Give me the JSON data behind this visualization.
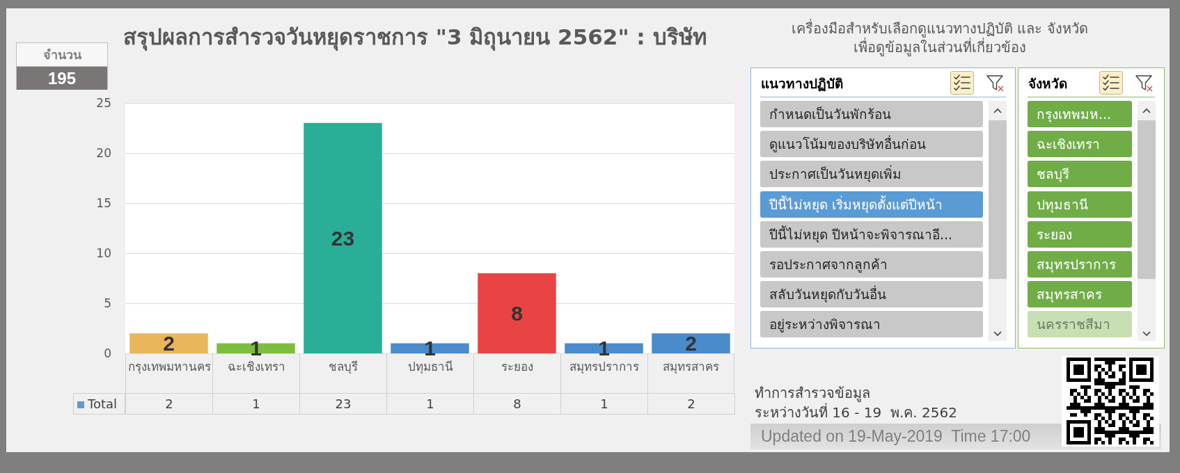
{
  "chart_data": [
    {
      "type": "other",
      "title": "จำนวน",
      "annotations": [
        "195"
      ]
    },
    {
      "type": "bar",
      "title": "สรุปผลการสำรวจวันหยุดราชการ \"3 มิถุนายน 2562\" : บริษัท",
      "categories": [
        "กรุงเทพมหานคร",
        "ฉะเชิงเทรา",
        "ชลบุรี",
        "ปทุมธานี",
        "ระยอง",
        "สมุทรปราการ",
        "สมุทรสาคร"
      ],
      "series": [
        {
          "name": "Total",
          "color": "#5b9bd5",
          "colors": [
            "#e9b65c",
            "#7dbd40",
            "#2aae97",
            "#4a8bcb",
            "#e84444",
            "#4a8bcb",
            "#4a8bcb"
          ],
          "values": [
            2,
            1,
            23,
            1,
            8,
            1,
            2
          ]
        }
      ],
      "ylim": [
        0,
        25
      ],
      "yticks": [
        0,
        5,
        10,
        15,
        20,
        25
      ],
      "grid": "y",
      "data_labels": true,
      "annotations": [
        "2",
        "1",
        "23",
        "1",
        "8",
        "1",
        "2"
      ]
    },
    {
      "type": "other",
      "annotations": [
        "เครื่องมือสำหรับเลือกดูแนวทางปฏิบัติ และ จังหวัด",
        "เพื่อดูข้อมูลในส่วนที่เกี่ยวข้อง"
      ]
    },
    {
      "type": "other",
      "title": "แนวทางปฏิบัติ",
      "annotations": [
        "กำหนดเป็นวันพักร้อน",
        "ดูแนวโน้มของบริษัทอื่นก่อน",
        "ประกาศเป็นวันหยุดเพิ่ม",
        "ปีนี้ไม่หยุด เริ่มหยุดตั้งแต่ปีหน้า",
        "ปีนี้ไม่หยุด ปีหน้าจะพิจารณาอี...",
        "รอประกาศจากลูกค้า",
        "สลับวันหยุดกับวันอื่น",
        "อยู่ระหว่างพิจารณา"
      ],
      "colors": [
        "#c8c8c8",
        "#c8c8c8",
        "#c8c8c8",
        "#5b9bd5",
        "#c8c8c8",
        "#c8c8c8",
        "#c8c8c8",
        "#c8c8c8"
      ]
    },
    {
      "type": "other",
      "title": "จังหวัด",
      "annotations": [
        "กรุงเทพมห...",
        "ฉะเชิงเทรา",
        "ชลบุรี",
        "ปทุมธานี",
        "ระยอง",
        "สมุทรปราการ",
        "สมุทรสาคร",
        "นครราชสีมา"
      ],
      "colors": [
        "#70ad47",
        "#70ad47",
        "#70ad47",
        "#70ad47",
        "#70ad47",
        "#70ad47",
        "#70ad47",
        "#c6e0b4"
      ]
    },
    {
      "type": "other",
      "annotations": [
        "ทำการสำรวจข้อมูล",
        "ระหว่างวันที่ 16 - 19  พ.ค. 2562"
      ]
    },
    {
      "type": "other",
      "annotations": [
        "Updated on 19-May-2019  Time 17:00"
      ]
    }
  ]
}
